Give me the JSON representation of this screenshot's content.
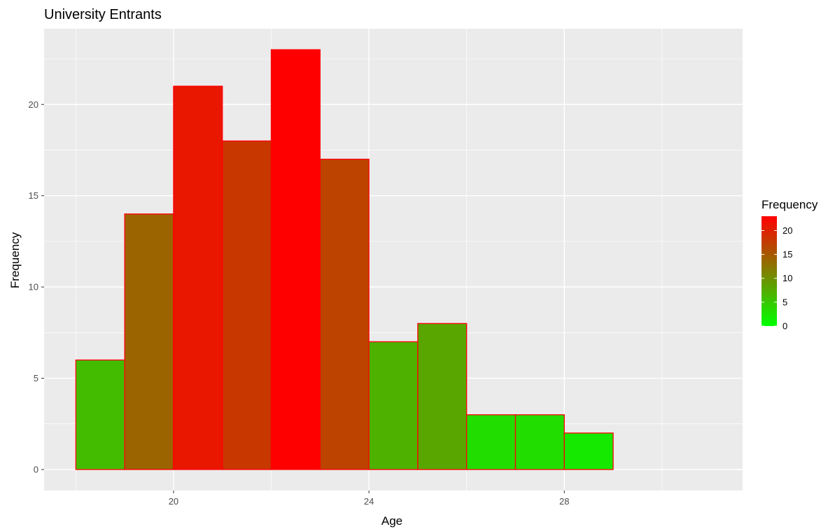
{
  "chart_data": {
    "type": "bar",
    "subtype": "histogram",
    "title": "University Entrants",
    "xlabel": "Age",
    "ylabel": "Frequency",
    "bins": [
      {
        "start": 18,
        "end": 19,
        "value": 6
      },
      {
        "start": 19,
        "end": 20,
        "value": 14
      },
      {
        "start": 20,
        "end": 21,
        "value": 21
      },
      {
        "start": 21,
        "end": 22,
        "value": 18
      },
      {
        "start": 22,
        "end": 23,
        "value": 23
      },
      {
        "start": 23,
        "end": 24,
        "value": 17
      },
      {
        "start": 24,
        "end": 25,
        "value": 7
      },
      {
        "start": 25,
        "end": 26,
        "value": 8
      },
      {
        "start": 26,
        "end": 27,
        "value": 3
      },
      {
        "start": 27,
        "end": 28,
        "value": 3
      },
      {
        "start": 28,
        "end": 29,
        "value": 2
      },
      {
        "start": 29,
        "end": 30,
        "value": 0
      },
      {
        "start": 30,
        "end": 31,
        "value": 0
      }
    ],
    "xlim": [
      17.35,
      31.65
    ],
    "ylim": [
      -1.15,
      24.15
    ],
    "x_ticks": [
      20,
      24,
      28
    ],
    "y_ticks": [
      0,
      5,
      10,
      15,
      20
    ],
    "grid": true,
    "bar_outline_color": "#ff0000",
    "panel_background": "#ebebeb",
    "gridline_color": "#ffffff",
    "fill_scale": {
      "low": "#00ff00",
      "high": "#ff0000",
      "min": 0,
      "max": 23
    },
    "legend": {
      "title": "Frequency",
      "position": "right",
      "ticks": [
        0,
        5,
        10,
        15,
        20
      ]
    }
  }
}
